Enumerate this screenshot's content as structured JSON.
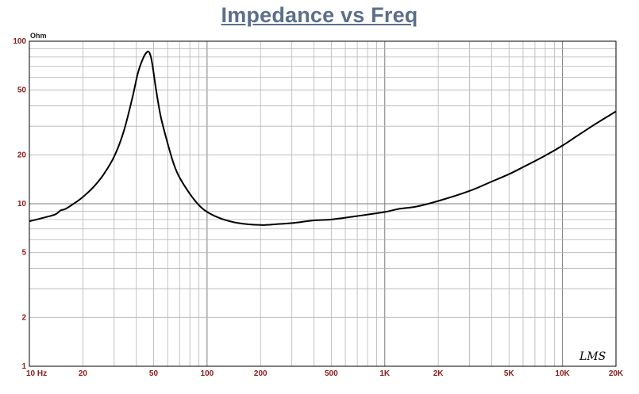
{
  "chart_data": {
    "type": "line",
    "title": "Impedance vs Freq",
    "ylabel": "Ohm",
    "xlabel": "",
    "x_scale": "log",
    "y_scale": "log",
    "xlim": [
      10,
      20000
    ],
    "ylim": [
      1,
      100
    ],
    "grid": true,
    "x_tick_labels": [
      {
        "value": 10,
        "label": "10 Hz"
      },
      {
        "value": 20,
        "label": "20"
      },
      {
        "value": 50,
        "label": "50"
      },
      {
        "value": 100,
        "label": "100"
      },
      {
        "value": 200,
        "label": "200"
      },
      {
        "value": 500,
        "label": "500"
      },
      {
        "value": 1000,
        "label": "1K"
      },
      {
        "value": 2000,
        "label": "2K"
      },
      {
        "value": 5000,
        "label": "5K"
      },
      {
        "value": 10000,
        "label": "10K"
      },
      {
        "value": 20000,
        "label": "20K"
      }
    ],
    "y_tick_labels": [
      {
        "value": 1,
        "label": "1"
      },
      {
        "value": 2,
        "label": "2"
      },
      {
        "value": 5,
        "label": "5"
      },
      {
        "value": 10,
        "label": "10"
      },
      {
        "value": 20,
        "label": "20"
      },
      {
        "value": 50,
        "label": "50"
      },
      {
        "value": 100,
        "label": "100"
      }
    ],
    "series": [
      {
        "color": "#000000",
        "x": [
          10,
          12,
          14,
          15,
          16,
          18,
          20,
          23,
          26,
          30,
          34,
          38,
          41,
          44,
          46,
          47,
          48,
          49,
          50,
          52,
          55,
          60,
          65,
          70,
          80,
          90,
          100,
          120,
          150,
          200,
          250,
          300,
          400,
          500,
          700,
          1000,
          1200,
          1500,
          2000,
          3000,
          4000,
          5000,
          6000,
          8000,
          10000,
          12000,
          15000,
          20000
        ],
        "y": [
          7.8,
          8.2,
          8.6,
          9.1,
          9.3,
          10.1,
          11.0,
          12.7,
          15.0,
          19.5,
          28.0,
          45.0,
          65.0,
          80.0,
          86.0,
          86.0,
          82.0,
          74.0,
          64.0,
          48.0,
          34.0,
          23.5,
          17.5,
          14.5,
          11.5,
          9.8,
          8.9,
          8.1,
          7.6,
          7.4,
          7.5,
          7.6,
          7.9,
          8.0,
          8.4,
          8.9,
          9.3,
          9.6,
          10.4,
          12.0,
          13.7,
          15.2,
          16.8,
          19.8,
          22.8,
          26.0,
          30.5,
          37.0
        ]
      }
    ],
    "logo_text": "LMS"
  }
}
